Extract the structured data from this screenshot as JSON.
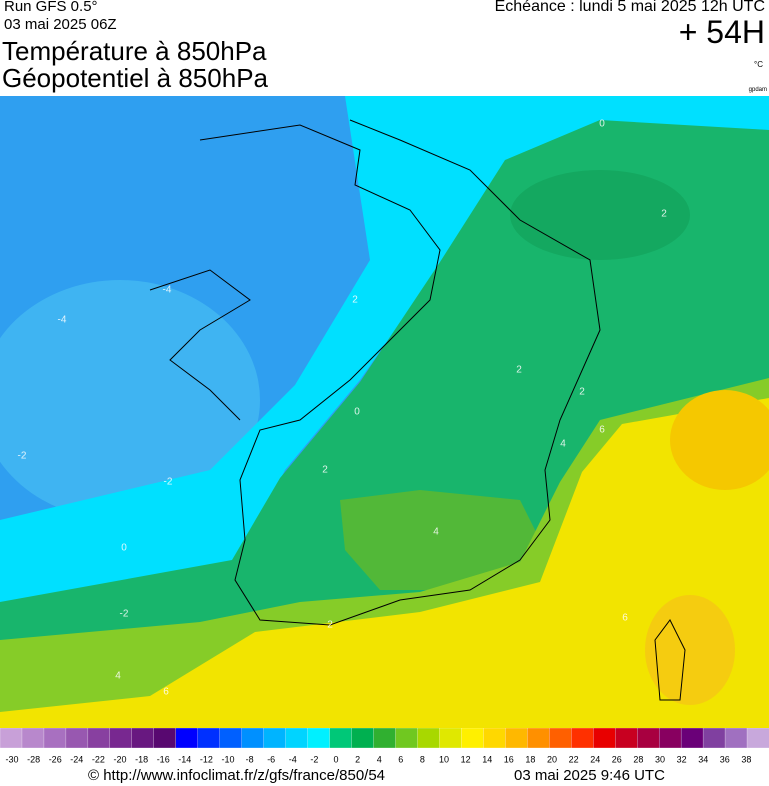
{
  "header": {
    "run": "Run GFS 0.5°",
    "date": "03 mai 2025 06Z",
    "echeance": "Echéance : lundi 5 mai 2025 12h UTC",
    "lead": "+ 54H",
    "title1": "Température à 850hPa",
    "title2": "Géopotentiel à 850hPa",
    "unit": "°C",
    "credit": "gpdam"
  },
  "map": {
    "contour_labels": [
      "0",
      "2",
      "-4",
      "-4",
      "2",
      "0",
      "2",
      "2",
      "-2",
      "-2",
      "0",
      "2",
      "4",
      "4",
      "6",
      "6",
      "-2",
      "4",
      "6",
      "2"
    ]
  },
  "scale": {
    "labels": [
      "-30",
      "-28",
      "-26",
      "-24",
      "-22",
      "-20",
      "-18",
      "-16",
      "-14",
      "-12",
      "-10",
      "-8",
      "-6",
      "-4",
      "-2",
      "0",
      "2",
      "4",
      "6",
      "8",
      "10",
      "12",
      "14",
      "16",
      "18",
      "20",
      "22",
      "24",
      "26",
      "28",
      "30",
      "32",
      "34",
      "36",
      "38"
    ],
    "colors": [
      "#c8a0d8",
      "#b888cc",
      "#a870c0",
      "#9858b0",
      "#8840a0",
      "#782890",
      "#681880",
      "#580870",
      "#0000ff",
      "#0030ff",
      "#0060ff",
      "#0090ff",
      "#00b4ff",
      "#00d4ff",
      "#00f0ff",
      "#00c878",
      "#00b050",
      "#30b030",
      "#70c820",
      "#a8d800",
      "#e0e800",
      "#fff000",
      "#ffd800",
      "#ffb800",
      "#ff9000",
      "#ff6000",
      "#ff3000",
      "#e80000",
      "#c80020",
      "#a80040",
      "#880060",
      "#6a0078",
      "#8040a0",
      "#a070c0",
      "#c8a8dc"
    ]
  },
  "footer": {
    "url": "© http://www.infoclimat.fr/z/gfs/france/850/54",
    "timestamp": "03 mai 2025  9:46 UTC"
  }
}
